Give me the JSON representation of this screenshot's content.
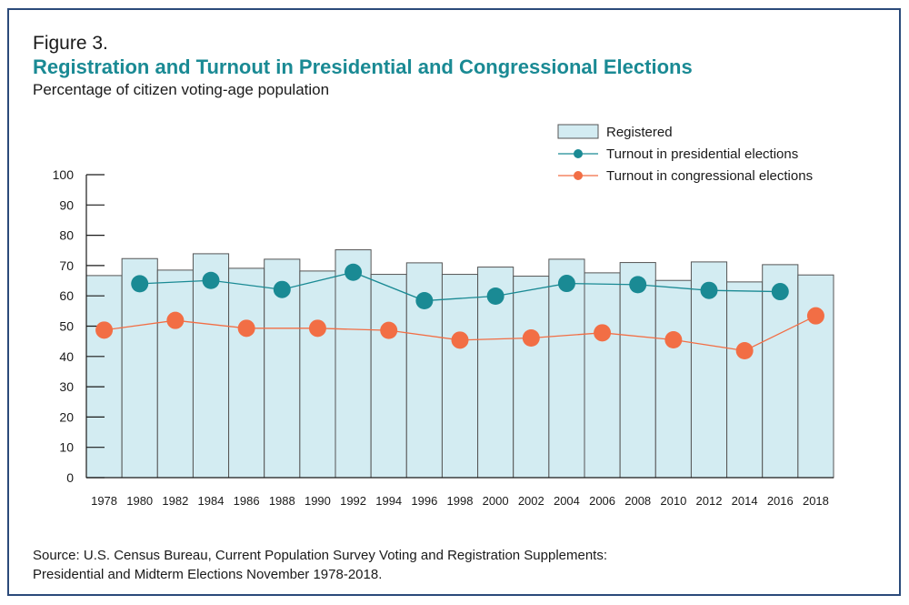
{
  "figure_label": "Figure 3.",
  "title": "Registration and Turnout in Presidential and Congressional Elections",
  "subtitle": "Percentage of citizen voting-age population",
  "source_line1": "Source: U.S. Census Bureau, Current Population Survey Voting and Registration Supplements:",
  "source_line2": "Presidential and Midterm Elections November 1978-2018.",
  "colors": {
    "bar_fill": "#d3ecf2",
    "bar_stroke": "#555555",
    "presidential": "#1a8a94",
    "congressional": "#f26e45",
    "frame": "#2b4a7a"
  },
  "chart_data": {
    "type": "bar",
    "categories": [
      "1978",
      "1980",
      "1982",
      "1984",
      "1986",
      "1988",
      "1990",
      "1992",
      "1994",
      "1996",
      "1998",
      "2000",
      "2002",
      "2004",
      "2006",
      "2008",
      "2010",
      "2012",
      "2014",
      "2016",
      "2018"
    ],
    "ylim": [
      0,
      100
    ],
    "yticks": [
      "0",
      "10",
      "20",
      "30",
      "40",
      "50",
      "60",
      "70",
      "80",
      "90",
      "100"
    ],
    "legend_position": "top-right",
    "series": [
      {
        "name": "Registered",
        "kind": "bar",
        "values": [
          66.7,
          72.3,
          68.5,
          73.9,
          69.1,
          72.1,
          68.2,
          75.2,
          67.1,
          70.9,
          67.1,
          69.5,
          66.5,
          72.1,
          67.6,
          71.0,
          65.1,
          71.2,
          64.6,
          70.3,
          66.9
        ]
      },
      {
        "name": "Turnout in presidential elections",
        "kind": "line",
        "x": [
          "1980",
          "1984",
          "1988",
          "1992",
          "1996",
          "2000",
          "2004",
          "2008",
          "2012",
          "2016"
        ],
        "values": [
          64.0,
          65.1,
          62.1,
          67.8,
          58.4,
          59.9,
          64.1,
          63.7,
          61.8,
          61.4
        ]
      },
      {
        "name": "Turnout in congressional elections",
        "kind": "line",
        "x": [
          "1978",
          "1982",
          "1986",
          "1990",
          "1994",
          "1998",
          "2002",
          "2006",
          "2010",
          "2014",
          "2018"
        ],
        "values": [
          48.7,
          51.9,
          49.3,
          49.3,
          48.6,
          45.4,
          46.1,
          47.8,
          45.5,
          41.9,
          53.4
        ]
      }
    ]
  }
}
